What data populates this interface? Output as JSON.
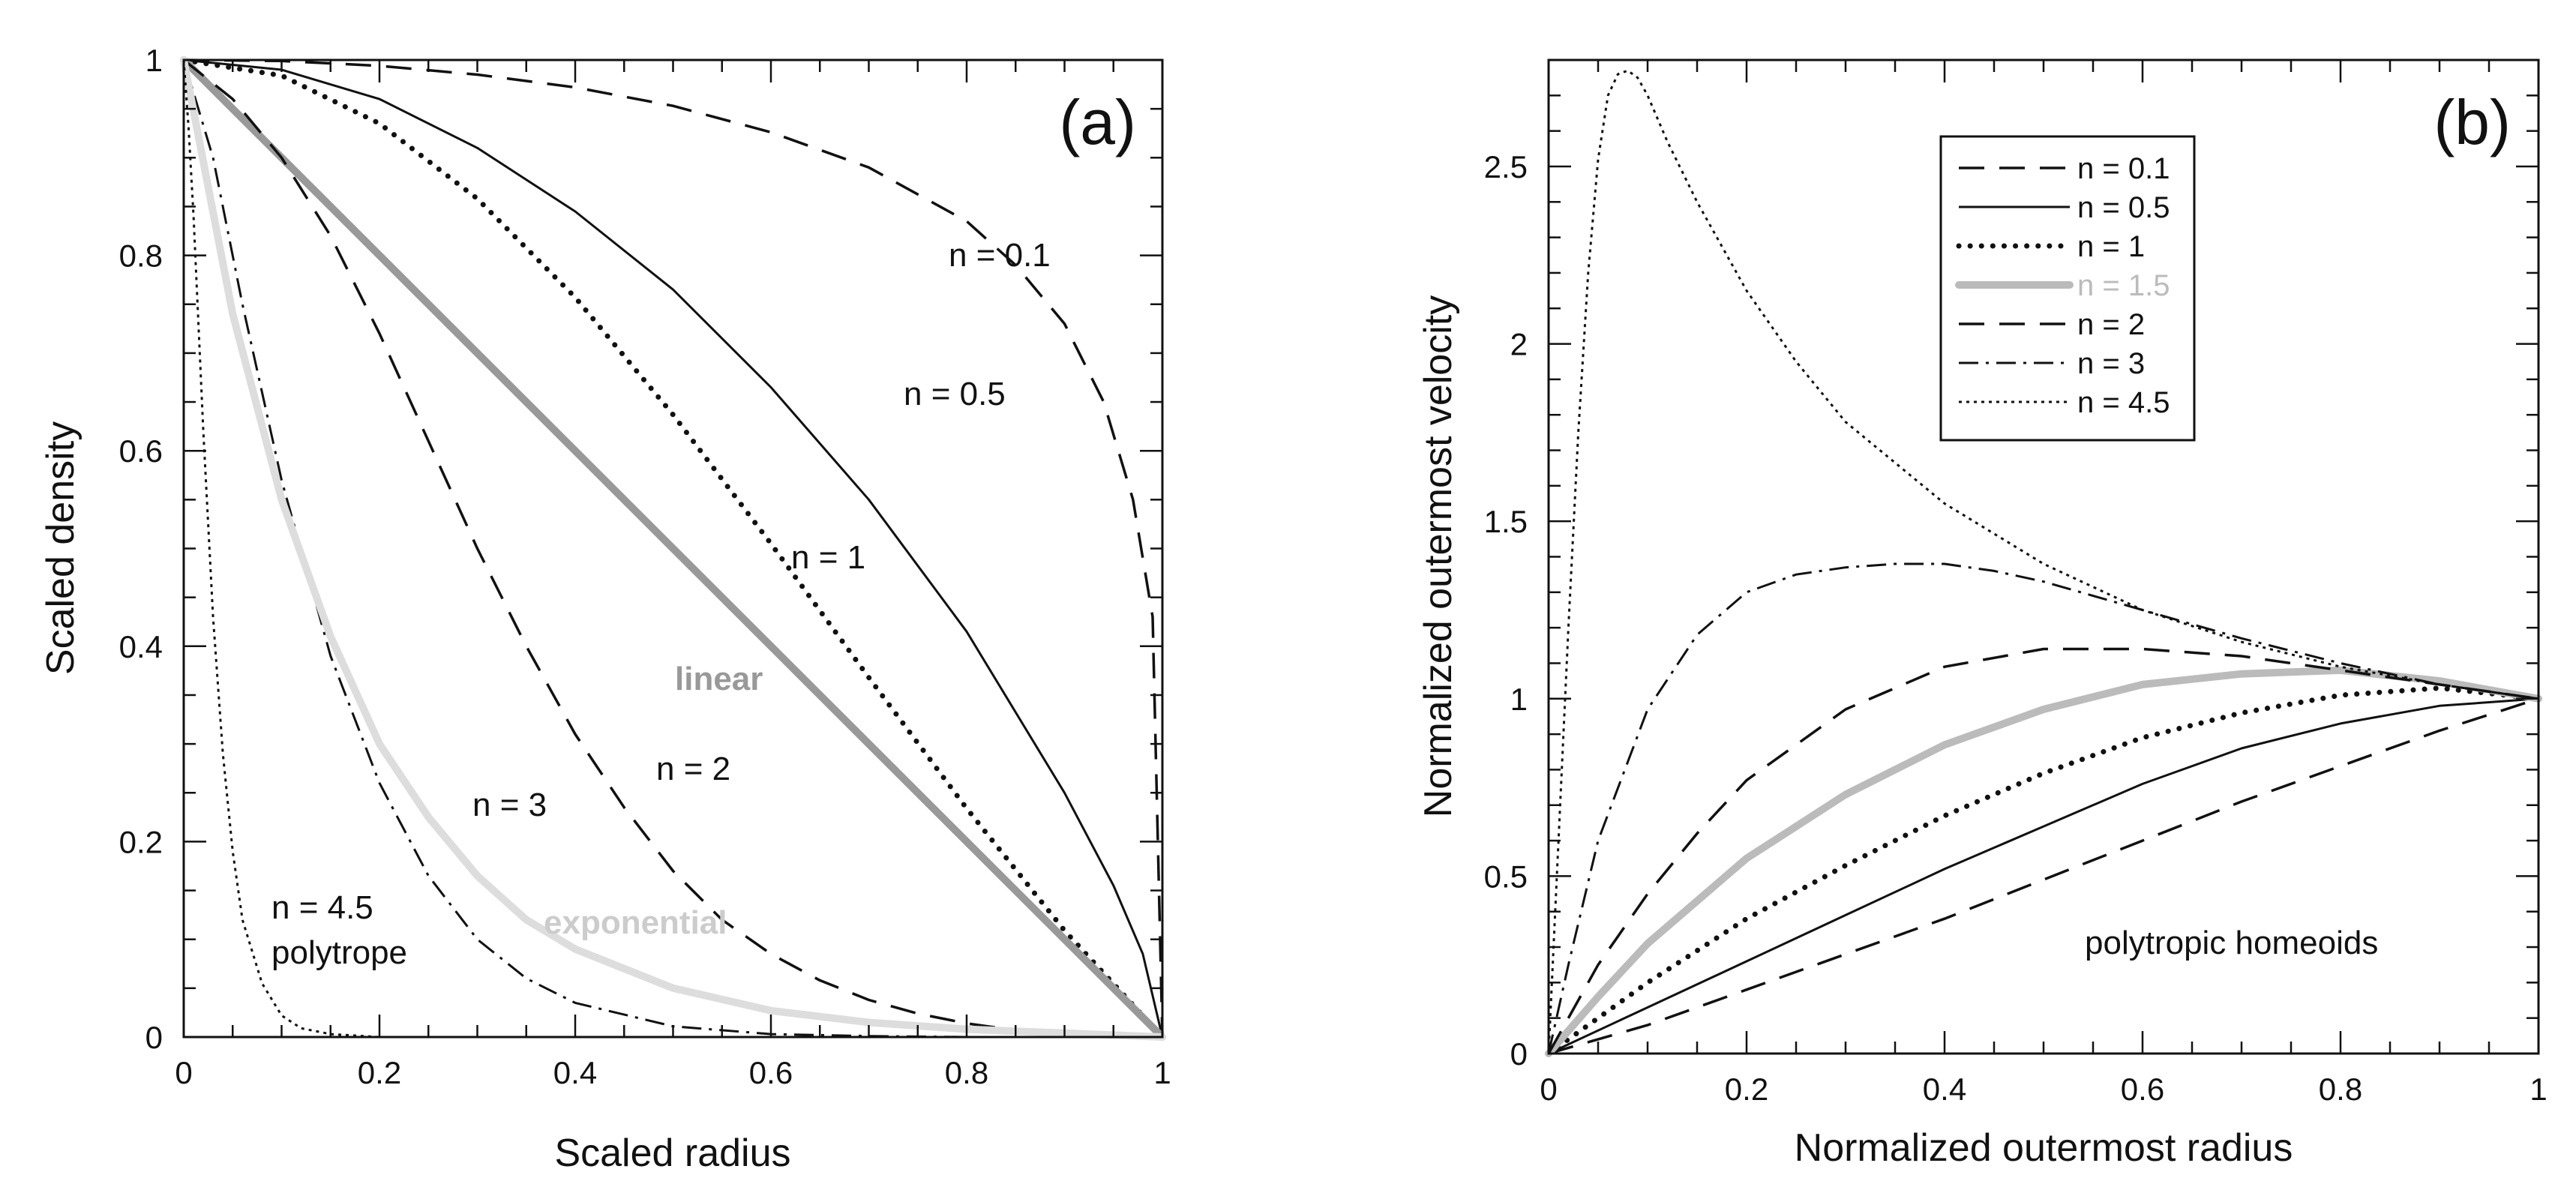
{
  "chart_data": [
    {
      "panel": "(a)",
      "type": "line",
      "xlabel": "Scaled radius",
      "ylabel": "Scaled density",
      "xlim": [
        0,
        1
      ],
      "ylim": [
        0,
        1
      ],
      "xticks": [
        "0",
        "0.2",
        "0.4",
        "0.6",
        "0.8",
        "1"
      ],
      "yticks": [
        "0",
        "0.2",
        "0.4",
        "0.6",
        "0.8",
        "1"
      ],
      "grid": false,
      "series": [
        {
          "name": "n = 0.1",
          "style": "dashed-long",
          "color": "#111111",
          "x": [
            0,
            0.1,
            0.2,
            0.3,
            0.4,
            0.5,
            0.6,
            0.7,
            0.8,
            0.85,
            0.9,
            0.94,
            0.97,
            0.99,
            1.0
          ],
          "y": [
            1,
            0.999,
            0.994,
            0.985,
            0.972,
            0.953,
            0.926,
            0.89,
            0.835,
            0.79,
            0.73,
            0.65,
            0.55,
            0.43,
            0
          ]
        },
        {
          "name": "n = 0.5",
          "style": "solid",
          "color": "#111111",
          "x": [
            0,
            0.1,
            0.2,
            0.3,
            0.4,
            0.5,
            0.6,
            0.7,
            0.8,
            0.9,
            0.95,
            0.98,
            1.0
          ],
          "y": [
            1,
            0.99,
            0.96,
            0.91,
            0.845,
            0.765,
            0.665,
            0.55,
            0.415,
            0.25,
            0.155,
            0.085,
            0
          ]
        },
        {
          "name": "n = 1",
          "style": "dotted-heavy",
          "color": "#111111",
          "x": [
            0,
            0.1,
            0.2,
            0.3,
            0.4,
            0.5,
            0.6,
            0.7,
            0.8,
            0.9,
            1.0
          ],
          "y": [
            1,
            0.984,
            0.935,
            0.858,
            0.757,
            0.637,
            0.505,
            0.368,
            0.234,
            0.109,
            0
          ]
        },
        {
          "name": "linear",
          "style": "solid-thick",
          "color": "#999999",
          "x": [
            0,
            1
          ],
          "y": [
            1,
            0
          ]
        },
        {
          "name": "n = 2",
          "style": "dashed-long",
          "color": "#111111",
          "x": [
            0,
            0.05,
            0.1,
            0.15,
            0.2,
            0.25,
            0.3,
            0.35,
            0.4,
            0.45,
            0.5,
            0.55,
            0.6,
            0.65,
            0.7,
            0.75,
            0.8,
            0.85,
            0.9,
            1.0
          ],
          "y": [
            1,
            0.96,
            0.9,
            0.82,
            0.72,
            0.61,
            0.5,
            0.4,
            0.31,
            0.235,
            0.17,
            0.12,
            0.085,
            0.058,
            0.038,
            0.024,
            0.014,
            0.007,
            0.003,
            0
          ]
        },
        {
          "name": "n = 3",
          "style": "dash-dot",
          "color": "#111111",
          "x": [
            0,
            0.03,
            0.06,
            0.1,
            0.15,
            0.2,
            0.25,
            0.3,
            0.35,
            0.4,
            0.5,
            0.6,
            0.7,
            0.8,
            1.0
          ],
          "y": [
            1,
            0.9,
            0.75,
            0.57,
            0.39,
            0.26,
            0.165,
            0.1,
            0.06,
            0.035,
            0.011,
            0.003,
            0.001,
            0,
            0
          ]
        },
        {
          "name": "exponential",
          "style": "solid-thick",
          "color": "#dddddd",
          "x": [
            0,
            0.05,
            0.1,
            0.15,
            0.2,
            0.25,
            0.3,
            0.35,
            0.4,
            0.5,
            0.6,
            0.7,
            0.8,
            0.9,
            1.0
          ],
          "y": [
            1,
            0.74,
            0.55,
            0.41,
            0.3,
            0.225,
            0.165,
            0.12,
            0.09,
            0.05,
            0.027,
            0.015,
            0.008,
            0.004,
            0
          ]
        },
        {
          "name": "n = 4.5 polytrope",
          "style": "dotted-fine",
          "color": "#111111",
          "x": [
            0,
            0.005,
            0.01,
            0.02,
            0.03,
            0.04,
            0.05,
            0.06,
            0.08,
            0.1,
            0.12,
            0.15,
            0.2,
            0.3,
            1.0
          ],
          "y": [
            1,
            0.93,
            0.84,
            0.62,
            0.43,
            0.29,
            0.19,
            0.12,
            0.055,
            0.022,
            0.009,
            0.003,
            0,
            0,
            0
          ]
        }
      ],
      "annotations": [
        {
          "text": "n = 0.1",
          "color": "#111111"
        },
        {
          "text": "n = 0.5",
          "color": "#111111"
        },
        {
          "text": "n = 1",
          "color": "#111111"
        },
        {
          "text": "linear",
          "color": "#999999"
        },
        {
          "text": "n = 2",
          "color": "#111111"
        },
        {
          "text": "n = 3",
          "color": "#111111"
        },
        {
          "text": "exponential",
          "color": "#cccccc"
        },
        {
          "text": "n = 4.5",
          "color": "#111111"
        },
        {
          "text": "polytrope",
          "color": "#111111"
        }
      ]
    },
    {
      "panel": "(b)",
      "type": "line",
      "xlabel": "Normalized outermost radius",
      "ylabel": "Normalized outermost velocity",
      "xlim": [
        0,
        1
      ],
      "ylim": [
        0,
        2.8
      ],
      "xticks": [
        "0",
        "0.2",
        "0.4",
        "0.6",
        "0.8",
        "1"
      ],
      "yticks": [
        "0",
        "0.5",
        "1",
        "1.5",
        "2",
        "2.5"
      ],
      "grid": false,
      "legend_position": "top-center",
      "series": [
        {
          "name": "n = 0.1",
          "style": "dashed-long",
          "color": "#111111",
          "x": [
            0,
            0.1,
            0.2,
            0.3,
            0.4,
            0.5,
            0.6,
            0.7,
            0.8,
            0.9,
            1.0
          ],
          "y": [
            0,
            0.08,
            0.18,
            0.28,
            0.38,
            0.49,
            0.6,
            0.71,
            0.81,
            0.91,
            1.0
          ]
        },
        {
          "name": "n = 0.5",
          "style": "solid",
          "color": "#111111",
          "x": [
            0,
            0.1,
            0.2,
            0.3,
            0.4,
            0.5,
            0.6,
            0.7,
            0.8,
            0.9,
            1.0
          ],
          "y": [
            0,
            0.13,
            0.26,
            0.39,
            0.52,
            0.64,
            0.76,
            0.86,
            0.93,
            0.98,
            1.0
          ]
        },
        {
          "name": "n = 1",
          "style": "dotted-heavy",
          "color": "#111111",
          "x": [
            0,
            0.1,
            0.2,
            0.3,
            0.4,
            0.5,
            0.6,
            0.7,
            0.8,
            0.9,
            1.0
          ],
          "y": [
            0,
            0.2,
            0.38,
            0.53,
            0.67,
            0.79,
            0.89,
            0.96,
            1.01,
            1.03,
            1.0
          ]
        },
        {
          "name": "n = 1.5",
          "style": "solid-thick",
          "color": "#bbbbbb",
          "x": [
            0,
            0.05,
            0.1,
            0.2,
            0.3,
            0.4,
            0.5,
            0.6,
            0.7,
            0.8,
            0.9,
            1.0
          ],
          "y": [
            0,
            0.16,
            0.31,
            0.55,
            0.73,
            0.87,
            0.97,
            1.04,
            1.07,
            1.08,
            1.05,
            1.0
          ]
        },
        {
          "name": "n = 2",
          "style": "dashed-long",
          "color": "#111111",
          "x": [
            0,
            0.05,
            0.1,
            0.15,
            0.2,
            0.3,
            0.4,
            0.5,
            0.6,
            0.7,
            0.8,
            0.9,
            1.0
          ],
          "y": [
            0,
            0.25,
            0.45,
            0.62,
            0.77,
            0.97,
            1.09,
            1.14,
            1.14,
            1.12,
            1.08,
            1.04,
            1.0
          ]
        },
        {
          "name": "n = 3",
          "style": "dash-dot",
          "color": "#111111",
          "x": [
            0,
            0.02,
            0.05,
            0.1,
            0.15,
            0.2,
            0.25,
            0.3,
            0.35,
            0.4,
            0.45,
            0.5,
            0.6,
            0.7,
            0.8,
            0.9,
            1.0
          ],
          "y": [
            0,
            0.25,
            0.6,
            0.97,
            1.18,
            1.3,
            1.35,
            1.37,
            1.38,
            1.38,
            1.36,
            1.33,
            1.25,
            1.17,
            1.1,
            1.04,
            1.0
          ]
        },
        {
          "name": "n = 4.5",
          "style": "dotted-fine",
          "color": "#111111",
          "x": [
            0,
            0.01,
            0.02,
            0.03,
            0.04,
            0.05,
            0.06,
            0.07,
            0.08,
            0.09,
            0.1,
            0.12,
            0.15,
            0.2,
            0.25,
            0.3,
            0.4,
            0.5,
            0.6,
            0.7,
            0.8,
            0.9,
            1.0
          ],
          "y": [
            0,
            0.6,
            1.2,
            1.75,
            2.2,
            2.52,
            2.7,
            2.76,
            2.77,
            2.75,
            2.7,
            2.57,
            2.4,
            2.15,
            1.95,
            1.78,
            1.55,
            1.38,
            1.25,
            1.16,
            1.09,
            1.04,
            1.0
          ]
        }
      ],
      "annotations": [
        {
          "text": "polytropic homeoids",
          "color": "#111111"
        }
      ]
    }
  ]
}
